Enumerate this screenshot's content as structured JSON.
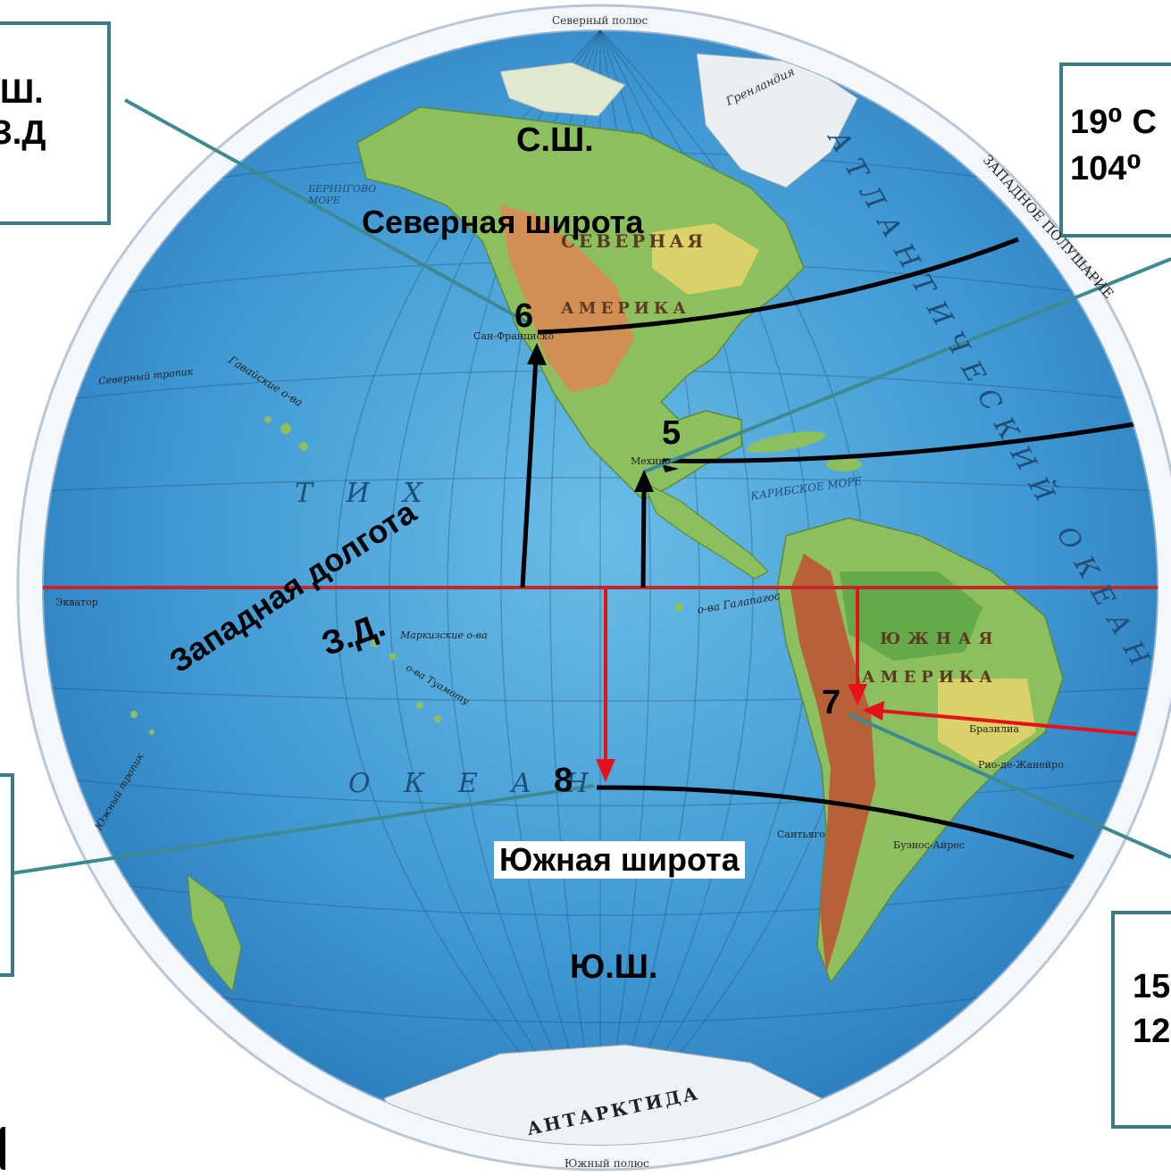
{
  "header": {
    "north_pole": "Северный полюс"
  },
  "footer": {
    "south_pole": "Южный полюс",
    "hemisphere": "ЗАПАДНОЕ ПОЛУШАРИЕ"
  },
  "boxes": {
    "top_left": {
      "line1": "Ш.",
      "line2": "З.Д"
    },
    "top_right": {
      "line1": "19⁰ С",
      "line2": "104⁰"
    },
    "bottom_right": {
      "line1": "15",
      "line2": "12"
    }
  },
  "labels": {
    "north_short": "С.Ш.",
    "north_lat": "Северная широта",
    "west_long": "Западная долгота",
    "west_short": "З.Д.",
    "south_lat": "Южная широта",
    "south_short": "Ю.Ш."
  },
  "points": [
    {
      "id": "5",
      "label": "5"
    },
    {
      "id": "6",
      "label": "6"
    },
    {
      "id": "7",
      "label": "7"
    },
    {
      "id": "8",
      "label": "8"
    }
  ],
  "map_names": {
    "north_america": "АМЕРИКА",
    "north_america_top": "СЕВЕРНАЯ",
    "south_america_1": "ЮЖНАЯ",
    "south_america_2": "АМЕРИКА",
    "pacific_1": "Т И Х",
    "pacific_2": "О К Е А Н",
    "atlantic": "АТЛАНТИЧЕСКИЙ ОКЕАН",
    "antarctica": "АНТАРКТИДА",
    "greenland_sea": "Гренландия",
    "bering": "БЕРИНГОВО МОРЕ",
    "caribbean": "КАРИБСКОЕ МОРЕ",
    "galapagos": "о-ва Галапагос",
    "hawaii": "Гавайские о-ва",
    "marquesas": "Маркизские о-ва",
    "tuamotu": "о-ва Туамоту",
    "san_francisco": "Сан-Франциско",
    "buenos_aires": "Буэнос-Айрес",
    "mexico": "Мехико",
    "brasilia": "Бразилиа",
    "rio": "Рио-де-Жанейро",
    "santiago": "Сантьяго",
    "equator": "Экватор",
    "north_tropic": "Северный тропик",
    "south_tropic": "Южный тропик"
  },
  "colors": {
    "ocean": "#4aa3d8",
    "land_green": "#6fb15a",
    "land_brown": "#c9794a",
    "equator": "#c0282c",
    "box_border": "#3d7b86",
    "red_line": "#e3121b"
  }
}
